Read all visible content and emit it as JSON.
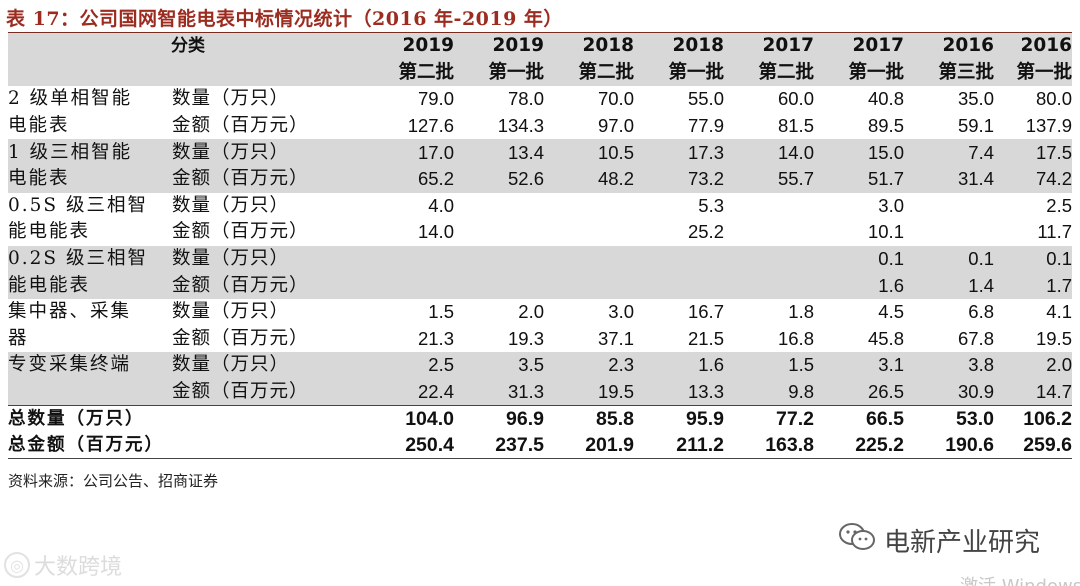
{
  "title": "表 17：公司国网智能电表中标情况统计（2016 年-2019 年）",
  "header": {
    "category_label": "分类",
    "years": [
      "2019",
      "2019",
      "2018",
      "2018",
      "2017",
      "2017",
      "2016",
      "2016"
    ],
    "batches": [
      "第二批",
      "第一批",
      "第二批",
      "第一批",
      "第二批",
      "第一批",
      "第三批",
      "第一批"
    ]
  },
  "groups": [
    {
      "category": [
        "2 级单相智能",
        "电能表"
      ],
      "rows": [
        {
          "metric": "数量（万只）",
          "values": [
            "79.0",
            "78.0",
            "70.0",
            "55.0",
            "60.0",
            "40.8",
            "35.0",
            "80.0"
          ]
        },
        {
          "metric": "金额（百万元）",
          "values": [
            "127.6",
            "134.3",
            "97.0",
            "77.9",
            "81.5",
            "89.5",
            "59.1",
            "137.9"
          ]
        }
      ]
    },
    {
      "category": [
        "1 级三相智能",
        "电能表"
      ],
      "rows": [
        {
          "metric": "数量（万只）",
          "values": [
            "17.0",
            "13.4",
            "10.5",
            "17.3",
            "14.0",
            "15.0",
            "7.4",
            "17.5"
          ]
        },
        {
          "metric": "金额（百万元）",
          "values": [
            "65.2",
            "52.6",
            "48.2",
            "73.2",
            "55.7",
            "51.7",
            "31.4",
            "74.2"
          ]
        }
      ]
    },
    {
      "category": [
        "0.5S 级三相智",
        "能电能表"
      ],
      "rows": [
        {
          "metric": "数量（万只）",
          "values": [
            "4.0",
            "",
            "",
            "5.3",
            "",
            "3.0",
            "",
            "2.5"
          ]
        },
        {
          "metric": "金额（百万元）",
          "values": [
            "14.0",
            "",
            "",
            "25.2",
            "",
            "10.1",
            "",
            "11.7"
          ]
        }
      ]
    },
    {
      "category": [
        "0.2S 级三相智",
        "能电能表"
      ],
      "rows": [
        {
          "metric": "数量（万只）",
          "values": [
            "",
            "",
            "",
            "",
            "",
            "0.1",
            "0.1",
            "0.1"
          ]
        },
        {
          "metric": "金额（百万元）",
          "values": [
            "",
            "",
            "",
            "",
            "",
            "1.6",
            "1.4",
            "1.7"
          ]
        }
      ]
    },
    {
      "category": [
        "集中器、采集",
        "器"
      ],
      "rows": [
        {
          "metric": "数量（万只）",
          "values": [
            "1.5",
            "2.0",
            "3.0",
            "16.7",
            "1.8",
            "4.5",
            "6.8",
            "4.1"
          ]
        },
        {
          "metric": "金额（百万元）",
          "values": [
            "21.3",
            "19.3",
            "37.1",
            "21.5",
            "16.8",
            "45.8",
            "67.8",
            "19.5"
          ]
        }
      ]
    },
    {
      "category": [
        "专变采集终端",
        ""
      ],
      "rows": [
        {
          "metric": "数量（万只）",
          "values": [
            "2.5",
            "3.5",
            "2.3",
            "1.6",
            "1.5",
            "3.1",
            "3.8",
            "2.0"
          ]
        },
        {
          "metric": "金额（百万元）",
          "values": [
            "22.4",
            "31.3",
            "19.5",
            "13.3",
            "9.8",
            "26.5",
            "30.9",
            "14.7"
          ]
        }
      ]
    }
  ],
  "totals": [
    {
      "label": "总数量（万只）",
      "values": [
        "104.0",
        "96.9",
        "85.8",
        "95.9",
        "77.2",
        "66.5",
        "53.0",
        "106.2"
      ]
    },
    {
      "label": "总金额（百万元）",
      "values": [
        "250.4",
        "237.5",
        "201.9",
        "211.2",
        "163.8",
        "225.2",
        "190.6",
        "259.6"
      ]
    }
  ],
  "source": "资料来源：公司公告、招商证券",
  "watermark_right": "电新产业研究",
  "watermark_left": "大数跨境",
  "watermark_left_glyph": "◎",
  "windows_activate": "激活 Windows"
}
